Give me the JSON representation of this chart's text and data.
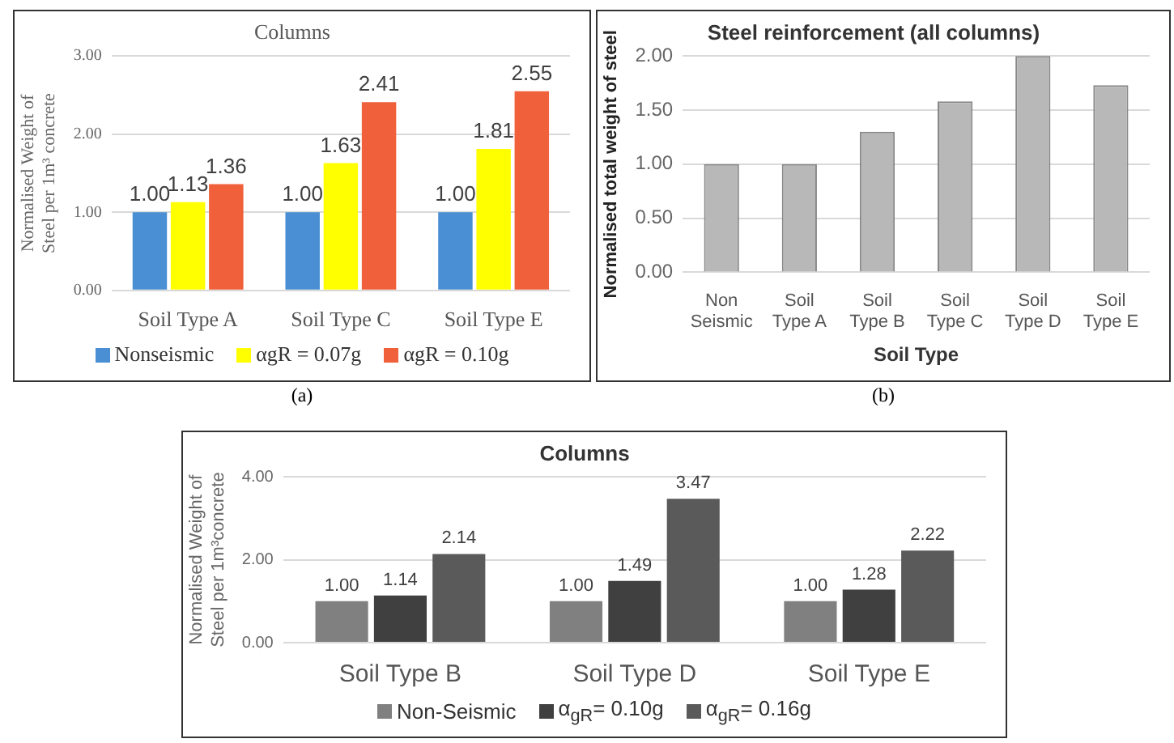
{
  "chart_data": [
    {
      "type": "bar",
      "title": "Columns",
      "ylabel": "Normalised Weight of Steel per 1m³ concrete",
      "categories": [
        "Soil Type A",
        "Soil Type C",
        "Soil Type E"
      ],
      "series": [
        {
          "name": "Nonseismic",
          "color": "#4a8fd4",
          "values": [
            1.0,
            1.0,
            1.0
          ],
          "value_labels": [
            "1.00",
            "1.00",
            "1.00"
          ]
        },
        {
          "name": "αgR = 0.07g",
          "color": "#ffff00",
          "values": [
            1.13,
            1.63,
            1.81
          ],
          "value_labels": [
            "1.13",
            "1.63",
            "1.81"
          ]
        },
        {
          "name": "αgR = 0.10g",
          "color": "#f0603a",
          "values": [
            1.36,
            2.41,
            2.55
          ],
          "value_labels": [
            "1.36",
            "2.41",
            "2.55"
          ]
        }
      ],
      "ylim": [
        0,
        3
      ],
      "yticks": [
        {
          "value": 0,
          "label": "0.00"
        },
        {
          "value": 1,
          "label": "1.00"
        },
        {
          "value": 2,
          "label": "2.00"
        },
        {
          "value": 3,
          "label": "3.00"
        }
      ],
      "grid": "y",
      "legend": "bottom",
      "annotations": [
        "(a)"
      ]
    },
    {
      "type": "bar",
      "title": "Steel reinforcement (all columns)",
      "xlabel": "Soil Type",
      "ylabel": "Normalised total weight of steel",
      "categories": [
        "Non Seismic",
        "Soil Type A",
        "Soil Type B",
        "Soil Type C",
        "Soil Type D",
        "Soil Type E"
      ],
      "values": [
        1.0,
        1.0,
        1.3,
        1.58,
        2.0,
        1.73
      ],
      "color": "#b8b8b8",
      "ylim": [
        0,
        2
      ],
      "yticks": [
        {
          "value": 0,
          "label": "0.00"
        },
        {
          "value": 0.5,
          "label": "0.50"
        },
        {
          "value": 1,
          "label": "1.00"
        },
        {
          "value": 1.5,
          "label": "1.50"
        },
        {
          "value": 2,
          "label": "2.00"
        }
      ],
      "grid": "y",
      "annotations": [
        "(b)"
      ]
    },
    {
      "type": "bar",
      "title": "Columns",
      "ylabel": "Normalised Weight of Steel per 1m³concrete",
      "categories": [
        "Soil Type B",
        "Soil Type D",
        "Soil Type E"
      ],
      "series": [
        {
          "name": "Non-Seismic",
          "color": "#808080",
          "values": [
            1.0,
            1.0,
            1.0
          ],
          "value_labels": [
            "1.00",
            "1.00",
            "1.00"
          ]
        },
        {
          "name": "α$_{gR}$= 0.10g",
          "color": "#404040",
          "values": [
            1.14,
            1.49,
            1.28
          ],
          "value_labels": [
            "1.14",
            "1.49",
            "1.28"
          ]
        },
        {
          "name": "α$_{gR}$= 0.16g",
          "color": "#5a5a5a",
          "values": [
            2.14,
            3.47,
            2.22
          ],
          "value_labels": [
            "2.14",
            "3.47",
            "2.22"
          ]
        }
      ],
      "ylim": [
        0,
        4
      ],
      "yticks": [
        {
          "value": 0,
          "label": "0.00"
        },
        {
          "value": 2,
          "label": "2.00"
        },
        {
          "value": 4,
          "label": "4.00"
        }
      ],
      "grid": "y",
      "legend": "bottom"
    }
  ]
}
